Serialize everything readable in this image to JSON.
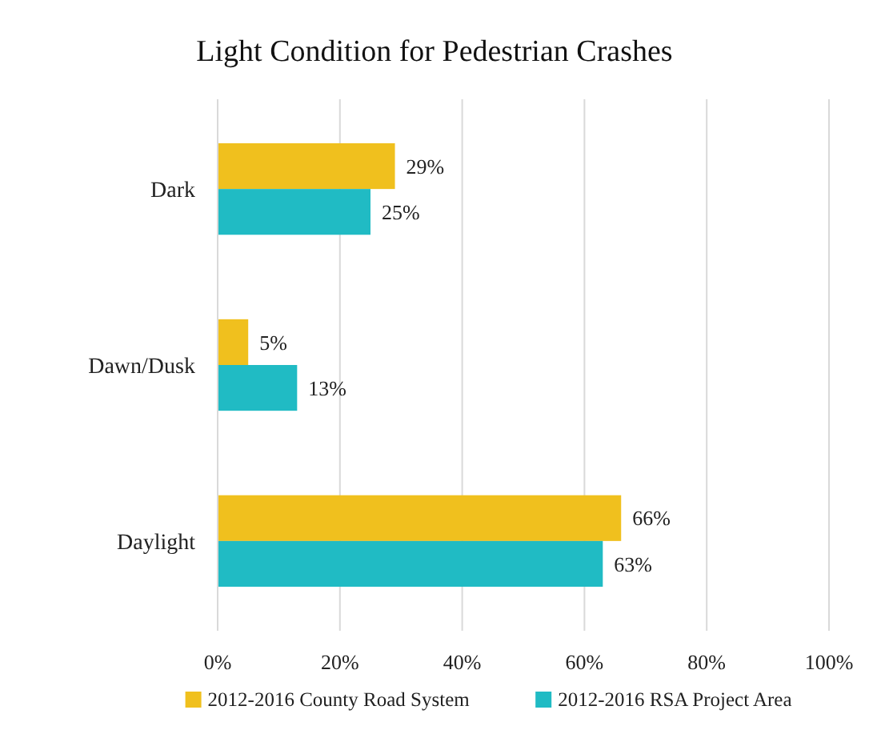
{
  "chart_data": {
    "type": "bar",
    "orientation": "horizontal",
    "title": "Light Condition for Pedestrian Crashes",
    "categories": [
      "Dark",
      "Dawn/Dusk",
      "Daylight"
    ],
    "series": [
      {
        "name": "2012-2016 County Road System",
        "color": "#f0c01e",
        "values": [
          29,
          5,
          66
        ],
        "value_labels": [
          "29%",
          "5%",
          "66%"
        ]
      },
      {
        "name": "2012-2016 RSA Project Area",
        "color": "#20bbc4",
        "values": [
          25,
          13,
          63
        ],
        "value_labels": [
          "25%",
          "13%",
          "63%"
        ]
      }
    ],
    "xlim": [
      0,
      100
    ],
    "xticks": [
      {
        "value": 0,
        "label": "0%"
      },
      {
        "value": 20,
        "label": "20%"
      },
      {
        "value": 40,
        "label": "40%"
      },
      {
        "value": 60,
        "label": "60%"
      },
      {
        "value": 80,
        "label": "80%"
      },
      {
        "value": 100,
        "label": "100%"
      }
    ],
    "grid": "x",
    "legend": "bottom"
  }
}
